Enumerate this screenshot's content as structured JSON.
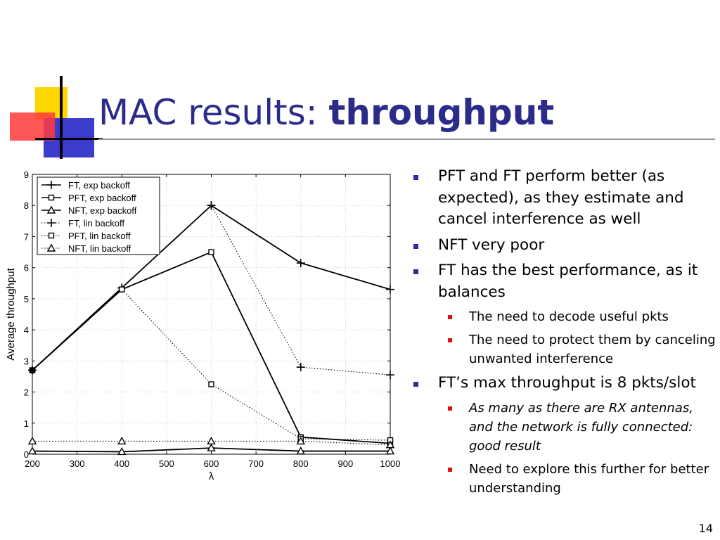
{
  "slide": {
    "title_normal": "MAC results: ",
    "title_bold": "throughput",
    "page_number": "14"
  },
  "colors": {
    "title": "#2b2c8a",
    "bullet_l1": "#2b2c9a",
    "bullet_l2": "#e01010",
    "logo_yellow": "#ffd700",
    "logo_blue": "#3c3ccc",
    "logo_red": "#ff3030"
  },
  "bullets": [
    {
      "level": 1,
      "text": "PFT and FT perform better (as expected), as they estimate and cancel interference as well",
      "italic": false
    },
    {
      "level": 1,
      "text": "NFT very poor",
      "italic": false
    },
    {
      "level": 1,
      "text": "FT has the best performance, as it balances",
      "italic": false
    },
    {
      "level": 2,
      "text": "The need to decode useful pkts",
      "italic": false
    },
    {
      "level": 2,
      "text": "The need to protect them by canceling unwanted interference",
      "italic": false
    },
    {
      "level": 1,
      "text": "FT’s max throughput is 8 pkts/slot",
      "italic": false
    },
    {
      "level": 2,
      "text": "As many as there are RX antennas, and the network is fully connected: good result",
      "italic": true
    },
    {
      "level": 2,
      "text": "Need to explore this further for better understanding",
      "italic": false
    }
  ],
  "chart_data": {
    "type": "line",
    "xlabel": "λ",
    "ylabel": "Average throughput",
    "xlim": [
      200,
      1000
    ],
    "ylim": [
      0,
      9
    ],
    "xticks": [
      200,
      300,
      400,
      500,
      600,
      700,
      800,
      900,
      1000
    ],
    "yticks": [
      0,
      1,
      2,
      3,
      4,
      5,
      6,
      7,
      8,
      9
    ],
    "grid": true,
    "legend_position": "top-left",
    "series": [
      {
        "name": "FT, exp backoff",
        "marker": "plus",
        "linestyle": "solid",
        "x": [
          200,
          400,
          600,
          800,
          1000
        ],
        "y": [
          2.7,
          5.35,
          8.0,
          6.15,
          5.3
        ]
      },
      {
        "name": "PFT, exp backoff",
        "marker": "square",
        "linestyle": "solid",
        "x": [
          200,
          400,
          600,
          800,
          1000
        ],
        "y": [
          2.7,
          5.3,
          6.5,
          0.55,
          0.35
        ]
      },
      {
        "name": "NFT, exp backoff",
        "marker": "triangle",
        "linestyle": "solid",
        "x": [
          200,
          400,
          600,
          800,
          1000
        ],
        "y": [
          0.1,
          0.08,
          0.2,
          0.1,
          0.1
        ]
      },
      {
        "name": "FT, lin backoff",
        "marker": "plus",
        "linestyle": "dotted",
        "x": [
          200,
          400,
          600,
          800,
          1000
        ],
        "y": [
          2.7,
          5.35,
          8.0,
          2.8,
          2.55
        ]
      },
      {
        "name": "PFT, lin backoff",
        "marker": "square",
        "linestyle": "dotted",
        "x": [
          200,
          400,
          600,
          800,
          1000
        ],
        "y": [
          2.7,
          5.3,
          2.25,
          0.5,
          0.45
        ]
      },
      {
        "name": "NFT, lin backoff",
        "marker": "triangle",
        "linestyle": "dotted",
        "x": [
          200,
          400,
          600,
          800,
          1000
        ],
        "y": [
          0.42,
          0.42,
          0.42,
          0.42,
          0.3
        ]
      }
    ]
  }
}
